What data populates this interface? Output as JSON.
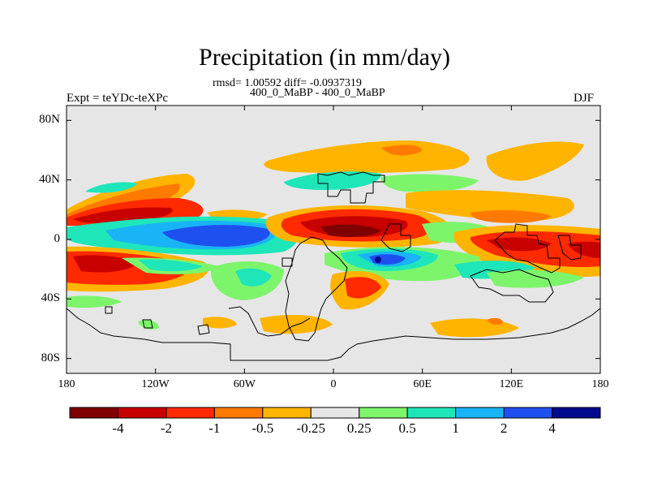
{
  "title": "Precipitation (in mm/day)",
  "stats": "rmsd= 1.00592 diff= -0.0937319",
  "subtitle": "400_0_MaBP - 400_0_MaBP",
  "expt": "Expt = teYDc-teXPc",
  "season": "DJF",
  "lat_ticks": [
    {
      "value": 80,
      "label": "80N"
    },
    {
      "value": 40,
      "label": "40N"
    },
    {
      "value": 0,
      "label": "0"
    },
    {
      "value": -40,
      "label": "40S"
    },
    {
      "value": -80,
      "label": "80S"
    }
  ],
  "lon_ticks": [
    {
      "value": -180,
      "label": "180"
    },
    {
      "value": -120,
      "label": "120W"
    },
    {
      "value": -60,
      "label": "60W"
    },
    {
      "value": 0,
      "label": "0"
    },
    {
      "value": 60,
      "label": "60E"
    },
    {
      "value": 120,
      "label": "120E"
    },
    {
      "value": 180,
      "label": "180"
    }
  ],
  "colorbar": {
    "colors": [
      "#7f0000",
      "#c80000",
      "#ff2a00",
      "#ff7a00",
      "#ffb400",
      "#e6e6e6",
      "#7df56b",
      "#1ee6b9",
      "#19b4f5",
      "#1e50f0",
      "#000a8c"
    ],
    "labels": [
      "-4",
      "-2",
      "-1",
      "-0.5",
      "-0.25",
      "0.25",
      "0.5",
      "1",
      "2",
      "4"
    ]
  },
  "colors": {
    "background": "#e6e6e6",
    "coast": "#000000"
  }
}
